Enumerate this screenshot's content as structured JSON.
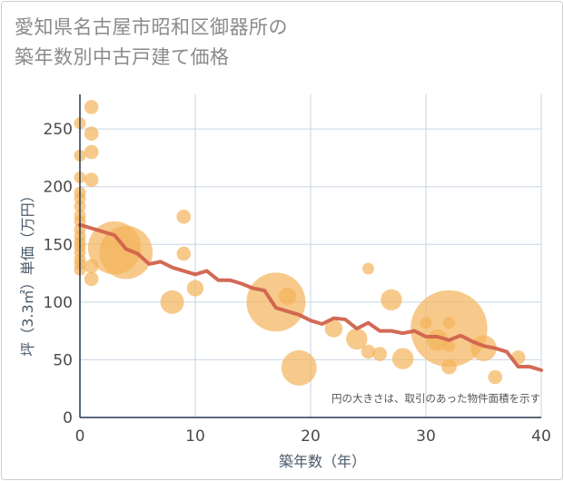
{
  "title_lines": [
    "愛知県名古屋市昭和区御器所の",
    "築年数別中古戸建て価格"
  ],
  "chart_data": {
    "type": "scatter",
    "xlabel": "築年数（年）",
    "ylabel": "坪（3.3㎡）単価（万円）",
    "xlim": [
      0,
      40
    ],
    "ylim": [
      0,
      280
    ],
    "xticks": [
      0,
      10,
      20,
      30,
      40
    ],
    "yticks": [
      0,
      50,
      100,
      150,
      200,
      250
    ],
    "grid": true,
    "note": "円の大きさは、取引のあった物件面積を示す",
    "colors": {
      "bubble": "#f3b45a",
      "trend": "#d0624c",
      "grid": "#c9d6e3",
      "axis": "#243a4e"
    },
    "bubbles": [
      {
        "x": 0,
        "y": 255,
        "s": 1
      },
      {
        "x": 0,
        "y": 227,
        "s": 1
      },
      {
        "x": 0,
        "y": 208,
        "s": 1
      },
      {
        "x": 0,
        "y": 195,
        "s": 1
      },
      {
        "x": 0,
        "y": 190,
        "s": 1
      },
      {
        "x": 0,
        "y": 183,
        "s": 1
      },
      {
        "x": 0,
        "y": 175,
        "s": 1
      },
      {
        "x": 0,
        "y": 170,
        "s": 1
      },
      {
        "x": 0,
        "y": 163,
        "s": 1
      },
      {
        "x": 0,
        "y": 157,
        "s": 1
      },
      {
        "x": 0,
        "y": 152,
        "s": 1
      },
      {
        "x": 0,
        "y": 148,
        "s": 1
      },
      {
        "x": 0,
        "y": 143,
        "s": 1
      },
      {
        "x": 0,
        "y": 137,
        "s": 1
      },
      {
        "x": 0,
        "y": 133,
        "s": 1
      },
      {
        "x": 0,
        "y": 128,
        "s": 1
      },
      {
        "x": 1,
        "y": 269,
        "s": 1.2
      },
      {
        "x": 1,
        "y": 246,
        "s": 1.2
      },
      {
        "x": 1,
        "y": 230,
        "s": 1.2
      },
      {
        "x": 1,
        "y": 206,
        "s": 1.2
      },
      {
        "x": 1,
        "y": 131,
        "s": 1.2
      },
      {
        "x": 1,
        "y": 120,
        "s": 1.2
      },
      {
        "x": 3,
        "y": 147,
        "s": 4.5
      },
      {
        "x": 4,
        "y": 143,
        "s": 4.5
      },
      {
        "x": 8,
        "y": 100,
        "s": 2
      },
      {
        "x": 9,
        "y": 174,
        "s": 1.2
      },
      {
        "x": 9,
        "y": 142,
        "s": 1.2
      },
      {
        "x": 10,
        "y": 112,
        "s": 1.4
      },
      {
        "x": 17,
        "y": 100,
        "s": 5
      },
      {
        "x": 18,
        "y": 105,
        "s": 1.5
      },
      {
        "x": 19,
        "y": 43,
        "s": 3
      },
      {
        "x": 22,
        "y": 77,
        "s": 1.5
      },
      {
        "x": 24,
        "y": 68,
        "s": 1.8
      },
      {
        "x": 25,
        "y": 129,
        "s": 1
      },
      {
        "x": 25,
        "y": 57,
        "s": 1.2
      },
      {
        "x": 26,
        "y": 55,
        "s": 1.2
      },
      {
        "x": 27,
        "y": 102,
        "s": 1.8
      },
      {
        "x": 28,
        "y": 51,
        "s": 1.8
      },
      {
        "x": 30,
        "y": 82,
        "s": 1
      },
      {
        "x": 31,
        "y": 67,
        "s": 1.8
      },
      {
        "x": 32,
        "y": 77,
        "s": 6.5
      },
      {
        "x": 32,
        "y": 82,
        "s": 1
      },
      {
        "x": 32,
        "y": 62,
        "s": 1
      },
      {
        "x": 32,
        "y": 44,
        "s": 1.3
      },
      {
        "x": 35,
        "y": 60,
        "s": 2.2
      },
      {
        "x": 36,
        "y": 35,
        "s": 1.2
      },
      {
        "x": 38,
        "y": 52,
        "s": 1.2
      }
    ],
    "trend": {
      "x": [
        0,
        1,
        2,
        3,
        4,
        5,
        6,
        7,
        8,
        9,
        10,
        11,
        12,
        13,
        14,
        15,
        16,
        17,
        18,
        19,
        20,
        21,
        22,
        23,
        24,
        25,
        26,
        27,
        28,
        29,
        30,
        31,
        32,
        33,
        34,
        35,
        36,
        37,
        38,
        39,
        40
      ],
      "y": [
        167,
        164,
        161,
        158,
        146,
        142,
        133,
        135,
        130,
        127,
        124,
        127,
        119,
        119,
        116,
        112,
        110,
        95,
        92,
        89,
        84,
        81,
        86,
        85,
        77,
        82,
        75,
        75,
        73,
        75,
        70,
        70,
        67,
        71,
        66,
        62,
        60,
        57,
        44,
        44,
        41
      ]
    }
  }
}
